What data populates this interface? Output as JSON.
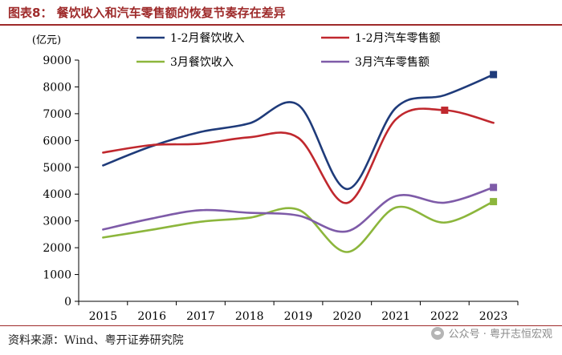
{
  "figure": {
    "title": "图表8：   餐饮收入和汽车零售额的恢复节奏存在差异",
    "source": "资料来源：Wind、粤开证券研究院",
    "watermark": "公众号 · 粤开志恒宏观"
  },
  "chart_data": {
    "type": "line",
    "title": "",
    "xlabel": "",
    "ylabel": "(亿元)",
    "x": [
      "2015",
      "2016",
      "2017",
      "2018",
      "2019",
      "2020",
      "2021",
      "2022",
      "2023"
    ],
    "ylim": [
      0,
      9000
    ],
    "yticks": [
      0,
      1000,
      2000,
      3000,
      4000,
      5000,
      6000,
      7000,
      8000,
      9000
    ],
    "grid": false,
    "legend_position": "top",
    "series": [
      {
        "name": "1-2月餐饮收入",
        "color": "#1f3b7a",
        "values": [
          5070,
          5790,
          6320,
          6640,
          7330,
          4190,
          7220,
          7690,
          8460
        ]
      },
      {
        "name": "1-2月汽车零售额",
        "color": "#c0282e",
        "values": [
          5550,
          5830,
          5880,
          6120,
          6100,
          3670,
          6790,
          7130,
          6660
        ]
      },
      {
        "name": "3月餐饮收入",
        "color": "#8cb63c",
        "values": [
          2380,
          2670,
          2970,
          3120,
          3420,
          1840,
          3500,
          2940,
          3720
        ]
      },
      {
        "name": "3月汽车零售额",
        "color": "#7e5ba8",
        "values": [
          2680,
          3090,
          3400,
          3300,
          3200,
          2610,
          3930,
          3680,
          4250
        ]
      }
    ],
    "markers": [
      {
        "series": "1-2月餐饮收入",
        "x": "2023",
        "value": 8460
      },
      {
        "series": "1-2月汽车零售额",
        "x": "2022",
        "value": 7130
      },
      {
        "series": "3月餐饮收入",
        "x": "2023",
        "value": 3720
      },
      {
        "series": "3月汽车零售额",
        "x": "2023",
        "value": 4250
      }
    ]
  }
}
